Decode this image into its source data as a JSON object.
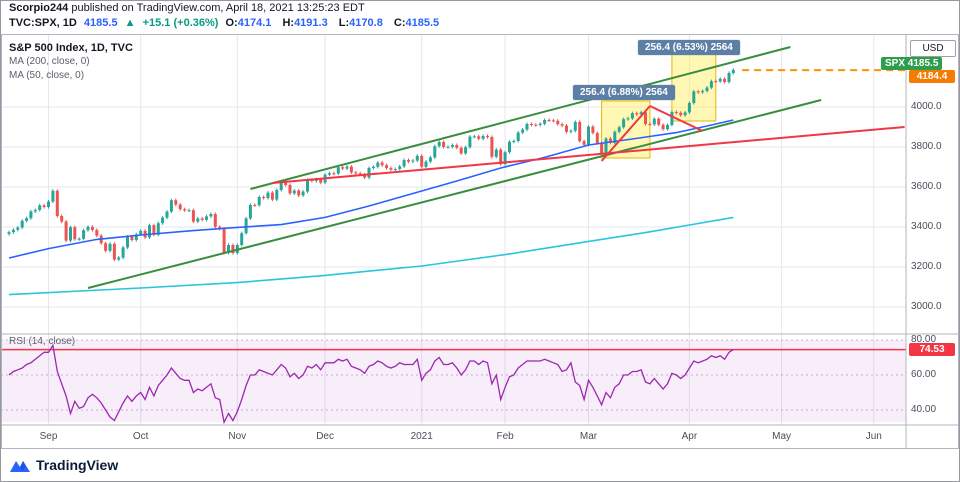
{
  "header": {
    "author": "Scorpio244",
    "publish_text": " published on TradingView.com, April 18, 2021 13:25:23 EDT",
    "symbol": "TVC:SPX, 1D",
    "last": "4185.5",
    "arrow": "▲",
    "change": "+15.1 (+0.36%)",
    "ohlc": {
      "o_label": "O:",
      "o": "4174.1",
      "h_label": "H:",
      "h": "4191.3",
      "l_label": "L:",
      "l": "4170.8",
      "c_label": "C:",
      "c": "4185.5"
    }
  },
  "legend": {
    "title": "S&P 500 Index, 1D, TVC",
    "ma200_label": "MA (200, close, 0)",
    "ma50_label": "MA (50, close, 0)"
  },
  "annotations": {
    "measure_top": "256.4 (6.53%) 2564",
    "measure_mid": "256.4 (6.88%) 2564"
  },
  "price_axis": {
    "currency": "USD",
    "symbol_badge_label": "SPX",
    "symbol_badge_value": "4185.5",
    "line_badge_value": "4184.4",
    "ticks": [
      "4000.0",
      "3800.0",
      "3600.0",
      "3400.0",
      "3200.0",
      "3000.0"
    ]
  },
  "rsi_panel": {
    "label": "RSI (14, close)",
    "ticks": [
      "80.00",
      "60.00",
      "40.00"
    ],
    "line_badge_value": "74.53"
  },
  "time_axis": {
    "labels": [
      "Sep",
      "Oct",
      "Nov",
      "Dec",
      "2021",
      "Feb",
      "Mar",
      "Apr",
      "May",
      "Jun"
    ]
  },
  "footer": {
    "brand": "TradingView"
  },
  "colors": {
    "up": "#26a69a",
    "down": "#ef5350",
    "ma50": "#2962ff",
    "ma200": "#27c6da",
    "green": "#388e3c",
    "red": "#f23645",
    "orange": "#ff9100",
    "rsi": "#9c27b0",
    "rsi_fill": "rgba(156,39,176,0.08)",
    "rsi_band_line": "rgba(123,31,162,0.35)",
    "box_fill": "rgba(255,238,88,0.45)",
    "box_border": "#e6b800",
    "grid": "#e4e7ee",
    "separator": "#b2b5be"
  },
  "chart_data": {
    "type": "candlestick",
    "title": "S&P 500 Index, 1D, TVC",
    "indicators": [
      "MA (200, close, 0)",
      "MA (50, close, 0)",
      "RSI (14, close)"
    ],
    "y_axis": {
      "ticks": [
        4000,
        3800,
        3600,
        3400,
        3200,
        3000
      ],
      "range_top": 4350,
      "range_bottom": 2870,
      "currency": "USD"
    },
    "x_tick_labels": [
      "Sep",
      "Oct",
      "Nov",
      "Dec",
      "2021",
      "Feb",
      "Mar",
      "Apr",
      "May",
      "Jun"
    ],
    "month_tick_indices": [
      9,
      30,
      52,
      72,
      94,
      113,
      132,
      155,
      176,
      197
    ],
    "first_open": 3365,
    "wick_extension": 8,
    "closes": [
      3374,
      3386,
      3397,
      3431,
      3444,
      3478,
      3485,
      3508,
      3500,
      3527,
      3581,
      3455,
      3427,
      3332,
      3399,
      3339,
      3341,
      3384,
      3401,
      3385,
      3357,
      3319,
      3281,
      3316,
      3237,
      3247,
      3298,
      3352,
      3335,
      3363,
      3381,
      3348,
      3409,
      3361,
      3419,
      3447,
      3477,
      3534,
      3512,
      3489,
      3483,
      3484,
      3427,
      3443,
      3436,
      3453,
      3465,
      3401,
      3391,
      3271,
      3310,
      3270,
      3310,
      3369,
      3443,
      3510,
      3509,
      3550,
      3545,
      3572,
      3537,
      3585,
      3627,
      3610,
      3568,
      3582,
      3558,
      3577,
      3635,
      3630,
      3638,
      3622,
      3662,
      3669,
      3667,
      3699,
      3692,
      3702,
      3673,
      3668,
      3663,
      3647,
      3695,
      3701,
      3722,
      3709,
      3695,
      3687,
      3690,
      3703,
      3735,
      3727,
      3732,
      3756,
      3701,
      3727,
      3748,
      3804,
      3825,
      3800,
      3801,
      3810,
      3796,
      3768,
      3799,
      3852,
      3853,
      3841,
      3855,
      3850,
      3751,
      3787,
      3714,
      3774,
      3826,
      3830,
      3872,
      3887,
      3915,
      3911,
      3910,
      3916,
      3935,
      3933,
      3931,
      3914,
      3907,
      3876,
      3881,
      3925,
      3829,
      3811,
      3902,
      3870,
      3820,
      3768,
      3842,
      3821,
      3876,
      3899,
      3939,
      3943,
      3969,
      3963,
      3974,
      3915,
      3913,
      3941,
      3911,
      3889,
      3910,
      3975,
      3971,
      3959,
      3973,
      4020,
      4078,
      4074,
      4080,
      4097,
      4129,
      4128,
      4141,
      4125,
      4170,
      4185.5
    ],
    "ma50_points": [
      [
        0,
        3245
      ],
      [
        9,
        3292
      ],
      [
        20,
        3338
      ],
      [
        30,
        3360
      ],
      [
        42,
        3382
      ],
      [
        52,
        3398
      ],
      [
        62,
        3412
      ],
      [
        72,
        3448
      ],
      [
        82,
        3505
      ],
      [
        94,
        3580
      ],
      [
        102,
        3630
      ],
      [
        112,
        3695
      ],
      [
        122,
        3748
      ],
      [
        132,
        3810
      ],
      [
        142,
        3840
      ],
      [
        152,
        3872
      ],
      [
        158,
        3900
      ],
      [
        165,
        3935
      ]
    ],
    "ma200_points": [
      [
        0,
        3062
      ],
      [
        30,
        3095
      ],
      [
        52,
        3122
      ],
      [
        72,
        3158
      ],
      [
        94,
        3205
      ],
      [
        113,
        3262
      ],
      [
        132,
        3328
      ],
      [
        145,
        3372
      ],
      [
        155,
        3410
      ],
      [
        165,
        3448
      ]
    ],
    "rsi": [
      60,
      62,
      63,
      64,
      66,
      67,
      69,
      71,
      73,
      73,
      77,
      62,
      55,
      48,
      38,
      45,
      41,
      42,
      47,
      49,
      47,
      44,
      40,
      36,
      34,
      39,
      44,
      48,
      45,
      48,
      50,
      46,
      53,
      48,
      54,
      57,
      60,
      64,
      61,
      58,
      57,
      57,
      50,
      52,
      51,
      53,
      55,
      47,
      46,
      33,
      38,
      34,
      39,
      46,
      54,
      60,
      60,
      63,
      62,
      61,
      60,
      63,
      66,
      64,
      59,
      61,
      58,
      60,
      65,
      64,
      66,
      63,
      67,
      67,
      67,
      69,
      68,
      69,
      65,
      64,
      63,
      61,
      65,
      66,
      68,
      67,
      65,
      64,
      65,
      67,
      66,
      66,
      66,
      69,
      57,
      61,
      63,
      68,
      70,
      66,
      66,
      67,
      64,
      60,
      63,
      68,
      68,
      66,
      68,
      67,
      55,
      60,
      46,
      53,
      59,
      60,
      64,
      66,
      68,
      68,
      68,
      68,
      69,
      68,
      67,
      66,
      62,
      63,
      67,
      56,
      54,
      46,
      57,
      53,
      48,
      43,
      50,
      47,
      53,
      55,
      60,
      60,
      62,
      62,
      63,
      56,
      55,
      58,
      55,
      52,
      55,
      61,
      60,
      58,
      60,
      64,
      68,
      67,
      68,
      69,
      71,
      70,
      71,
      69,
      73,
      74.53
    ],
    "rsi_ticks": [
      80,
      60,
      40
    ],
    "rsi_fill_range": [
      80,
      33
    ],
    "rsi_red_line": 74.53,
    "horizontal_line": {
      "price": 4184.4,
      "start_index": 167
    },
    "trendlines": [
      {
        "name": "channel-lower",
        "from": [
          18,
          3095
        ],
        "to": [
          185,
          4035
        ],
        "color": "green"
      },
      {
        "name": "channel-upper",
        "from": [
          55,
          3590
        ],
        "to": [
          178,
          4300
        ],
        "color": "green"
      },
      {
        "name": "long-support",
        "from": [
          60,
          3620
        ],
        "to": [
          204,
          3900
        ],
        "color": "red"
      },
      {
        "name": "rally-pole",
        "from": [
          135,
          3730
        ],
        "to": [
          146,
          4005
        ],
        "color": "red"
      },
      {
        "name": "flag-top",
        "from": [
          146,
          4005
        ],
        "to": [
          158,
          3880
        ],
        "color": "red"
      }
    ],
    "highlight_boxes": [
      {
        "from_index": 135,
        "to_index": 146,
        "price_top": 4030,
        "price_bottom": 3745
      },
      {
        "from_index": 151,
        "to_index": 161,
        "price_top": 4270,
        "price_bottom": 3930
      }
    ]
  }
}
